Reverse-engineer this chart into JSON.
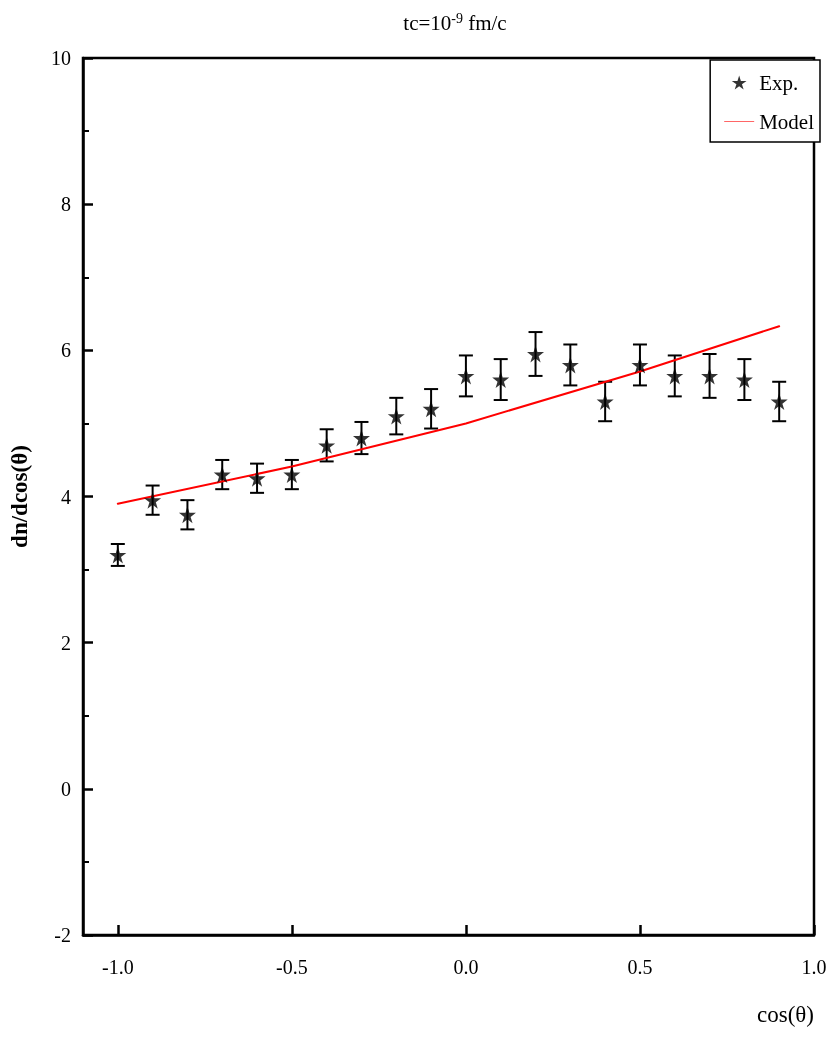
{
  "chart_data": {
    "type": "scatter",
    "title": "tc=10$^{-9}$ fm/c",
    "xlabel": "cos(θ)",
    "ylabel": "dn/dcos(θ)",
    "xlim": [
      -1.1,
      1.0
    ],
    "xticks": [
      {
        "value": -1.0,
        "label": "-1.0"
      },
      {
        "value": -0.5,
        "label": "-0.5"
      },
      {
        "value": 0,
        "label": "0.0"
      },
      {
        "value": 0.5,
        "label": "0.5"
      },
      {
        "value": 1.0,
        "label": "1.0"
      }
    ],
    "ylim": [
      -2,
      10
    ],
    "yticks": [
      -2,
      0,
      2,
      4,
      6,
      8,
      10
    ],
    "grid": false,
    "legend": "top right",
    "marker": "star",
    "series": [
      {
        "name": "Exp.",
        "color": "#000000",
        "x": [
          -1.0,
          -0.9,
          -0.8,
          -0.7,
          -0.6,
          -0.5,
          -0.4,
          -0.3,
          -0.2,
          -0.1,
          0.0,
          0.1,
          0.2,
          0.3,
          0.4,
          0.5,
          0.6,
          0.7,
          0.8,
          0.9
        ],
        "values": [
          3.2,
          3.95,
          3.75,
          4.3,
          4.25,
          4.3,
          4.7,
          4.8,
          5.1,
          5.2,
          5.65,
          5.6,
          5.95,
          5.8,
          5.3,
          5.8,
          5.65,
          5.65,
          5.6,
          5.3
        ],
        "errors": [
          0.15,
          0.2,
          0.2,
          0.2,
          0.2,
          0.2,
          0.22,
          0.22,
          0.25,
          0.27,
          0.28,
          0.28,
          0.3,
          0.28,
          0.27,
          0.28,
          0.28,
          0.3,
          0.28,
          0.27
        ]
      },
      {
        "name": "Model",
        "type": "line",
        "color": "#ff0000",
        "marker": "none",
        "line_style": "solid",
        "x": [
          -1.0,
          -0.5,
          0.0,
          0.5,
          0.9
        ],
        "values": [
          3.9,
          4.41,
          5.0,
          5.71,
          6.33
        ]
      }
    ]
  }
}
